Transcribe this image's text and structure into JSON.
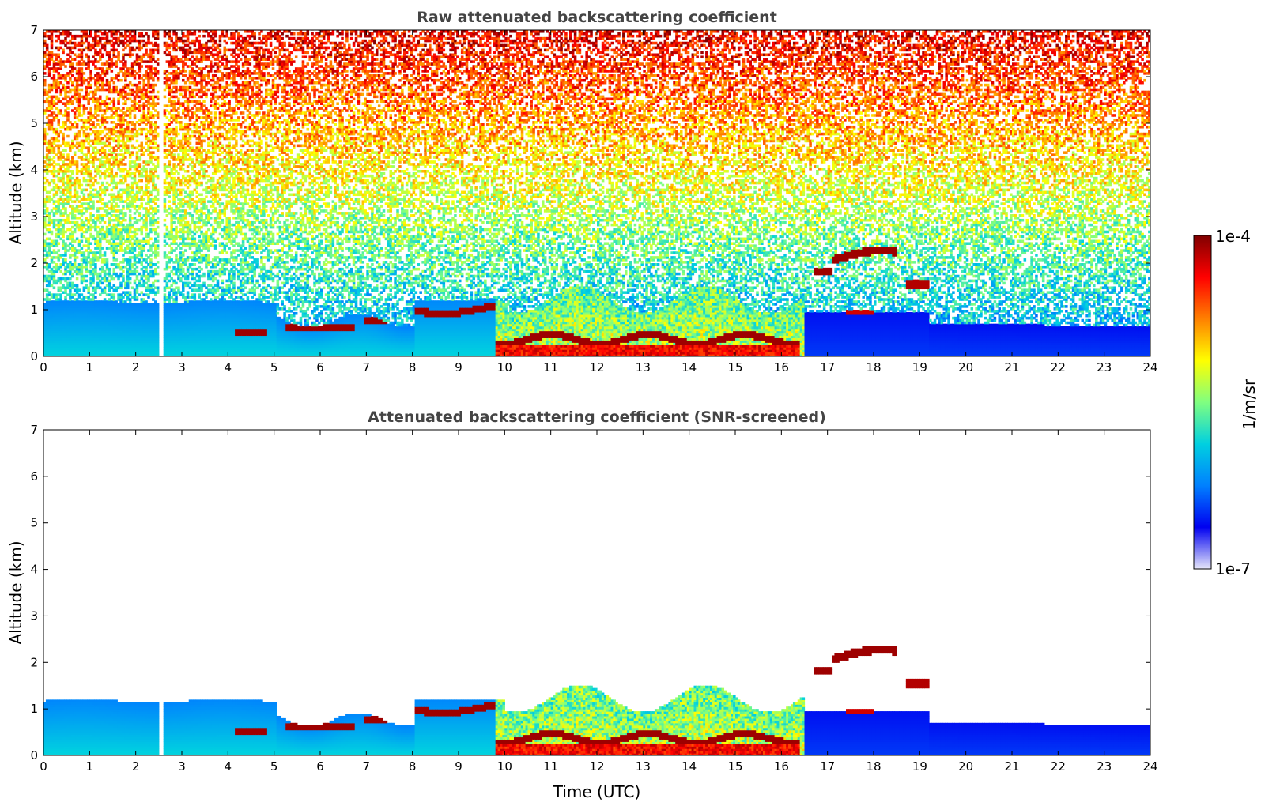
{
  "figure": {
    "colorbar": {
      "label": "1/m/sr",
      "max_label": "1e-4",
      "min_label": "1e-7",
      "scale": "log",
      "colormap": [
        "#e6e6fa",
        "#0000f0",
        "#0080ff",
        "#00d0e0",
        "#80ff80",
        "#ffff00",
        "#ff8000",
        "#ff0000",
        "#800000"
      ]
    }
  },
  "chart_data": [
    {
      "type": "heatmap",
      "title": "Raw attenuated backscattering coefficient",
      "xlabel": "",
      "ylabel": "Altitude (km)",
      "xlim": [
        0,
        24
      ],
      "ylim": [
        0,
        7
      ],
      "xticks": [
        "0",
        "1",
        "2",
        "3",
        "4",
        "5",
        "6",
        "7",
        "8",
        "9",
        "10",
        "11",
        "12",
        "13",
        "14",
        "15",
        "16",
        "17",
        "18",
        "19",
        "20",
        "21",
        "22",
        "23",
        "24"
      ],
      "yticks": [
        "0",
        "1",
        "2",
        "3",
        "4",
        "5",
        "6",
        "7"
      ],
      "grid": false,
      "data_gap_hours": [
        2.45,
        2.55
      ],
      "noise_field": true
    },
    {
      "type": "heatmap",
      "title": "Attenuated backscattering coefficient (SNR-screened)",
      "xlabel": "Time (UTC)",
      "ylabel": "Altitude (km)",
      "xlim": [
        0,
        24
      ],
      "ylim": [
        0,
        7
      ],
      "xticks": [
        "0",
        "1",
        "2",
        "3",
        "4",
        "5",
        "6",
        "7",
        "8",
        "9",
        "10",
        "11",
        "12",
        "13",
        "14",
        "15",
        "16",
        "17",
        "18",
        "19",
        "20",
        "21",
        "22",
        "23",
        "24"
      ],
      "yticks": [
        "0",
        "1",
        "2",
        "3",
        "4",
        "5",
        "6",
        "7"
      ],
      "grid": false,
      "data_gap_hours": [
        2.45,
        2.55
      ],
      "noise_field": false
    }
  ]
}
